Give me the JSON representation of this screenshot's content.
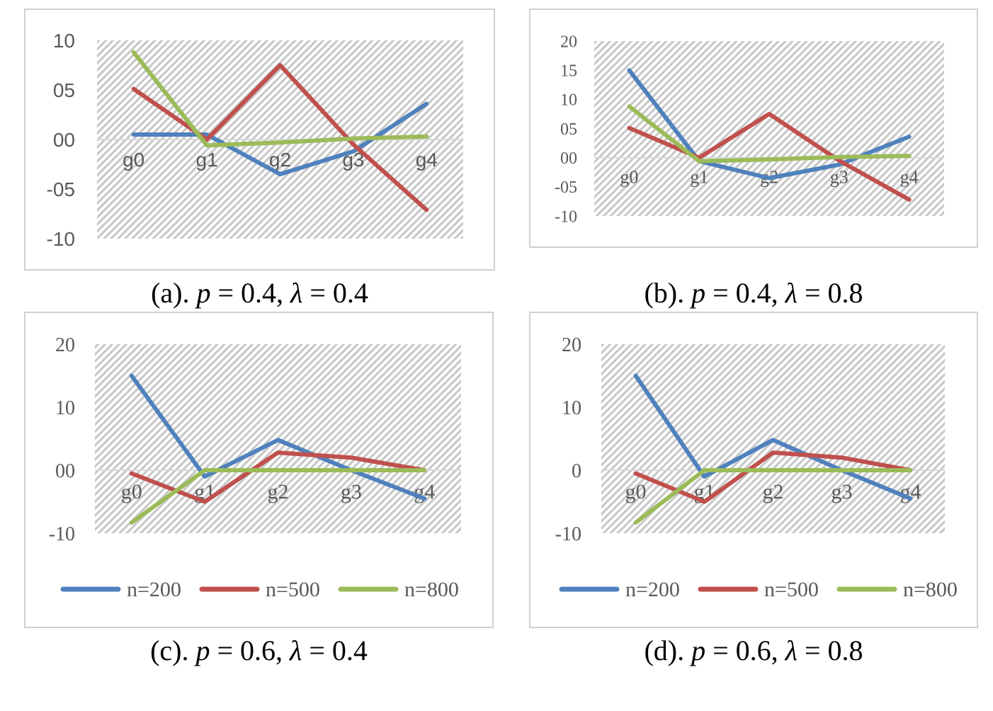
{
  "chart_data": [
    {
      "id": "a",
      "type": "line",
      "categories": [
        "g0",
        "g1",
        "g2",
        "g3",
        "g4"
      ],
      "yticks": [
        "10",
        "05",
        "00",
        "-05",
        "-10"
      ],
      "ylim": [
        -10,
        10
      ],
      "series": [
        {
          "name": "n=200",
          "color": "#4f81bd",
          "values": [
            0.5,
            0.5,
            -3.5,
            -1.2,
            3.6
          ]
        },
        {
          "name": "n=500",
          "color": "#c0504d",
          "values": [
            5.1,
            0.0,
            7.5,
            -0.5,
            -7.1
          ]
        },
        {
          "name": "n=800",
          "color": "#9bbb59",
          "values": [
            8.8,
            -0.6,
            -0.3,
            0.1,
            0.3
          ]
        }
      ],
      "legend": false,
      "grid": false,
      "caption": {
        "prefix": "(a). ",
        "p": "0.4",
        "lambda": "0.4"
      }
    },
    {
      "id": "b",
      "type": "line",
      "categories": [
        "g0",
        "g1",
        "g2",
        "g3",
        "g4"
      ],
      "yticks": [
        "20",
        "15",
        "10",
        "05",
        "00",
        "-05",
        "-10"
      ],
      "ylim": [
        -10,
        20
      ],
      "series": [
        {
          "name": "n=200",
          "color": "#4f81bd",
          "values": [
            15.0,
            -0.6,
            -3.5,
            -1.2,
            3.6
          ]
        },
        {
          "name": "n=500",
          "color": "#c0504d",
          "values": [
            5.1,
            0.0,
            7.5,
            -0.5,
            -7.2
          ]
        },
        {
          "name": "n=800",
          "color": "#9bbb59",
          "values": [
            8.8,
            -0.6,
            -0.3,
            0.1,
            0.3
          ]
        }
      ],
      "legend": false,
      "grid": false,
      "caption": {
        "prefix": "(b). ",
        "p": "0.4",
        "lambda": "0.8"
      }
    },
    {
      "id": "c",
      "type": "line",
      "categories": [
        "g0",
        "g1",
        "g2",
        "g3",
        "g4"
      ],
      "yticks": [
        "20",
        "10",
        "00",
        "-10"
      ],
      "ylim": [
        -10,
        20
      ],
      "series": [
        {
          "name": "n=200",
          "color": "#4f81bd",
          "values": [
            15.0,
            -1.0,
            4.8,
            0.0,
            -4.5
          ]
        },
        {
          "name": "n=500",
          "color": "#c0504d",
          "values": [
            -0.5,
            -5.0,
            2.8,
            2.0,
            0.0
          ]
        },
        {
          "name": "n=800",
          "color": "#9bbb59",
          "values": [
            -8.3,
            0.0,
            0.0,
            0.0,
            0.0
          ]
        }
      ],
      "legend": true,
      "legend_placement": "bottom",
      "grid": false,
      "caption": {
        "prefix": "(c). ",
        "p": "0.6",
        "lambda": "0.4"
      }
    },
    {
      "id": "d",
      "type": "line",
      "categories": [
        "g0",
        "g1",
        "g2",
        "g3",
        "g4"
      ],
      "yticks": [
        "20",
        "10",
        "0",
        "-10"
      ],
      "ylim": [
        -10,
        20
      ],
      "series": [
        {
          "name": "n=200",
          "color": "#4f81bd",
          "values": [
            15.0,
            -1.0,
            4.8,
            0.0,
            -4.5
          ]
        },
        {
          "name": "n=500",
          "color": "#c0504d",
          "values": [
            -0.5,
            -5.0,
            2.8,
            2.0,
            0.0
          ]
        },
        {
          "name": "n=800",
          "color": "#9bbb59",
          "values": [
            -8.3,
            0.0,
            0.0,
            0.0,
            0.0
          ]
        }
      ],
      "legend": true,
      "legend_placement": "bottom",
      "grid": false,
      "caption": {
        "prefix": "(d). ",
        "p": "0.6",
        "lambda": "0.8"
      }
    }
  ]
}
